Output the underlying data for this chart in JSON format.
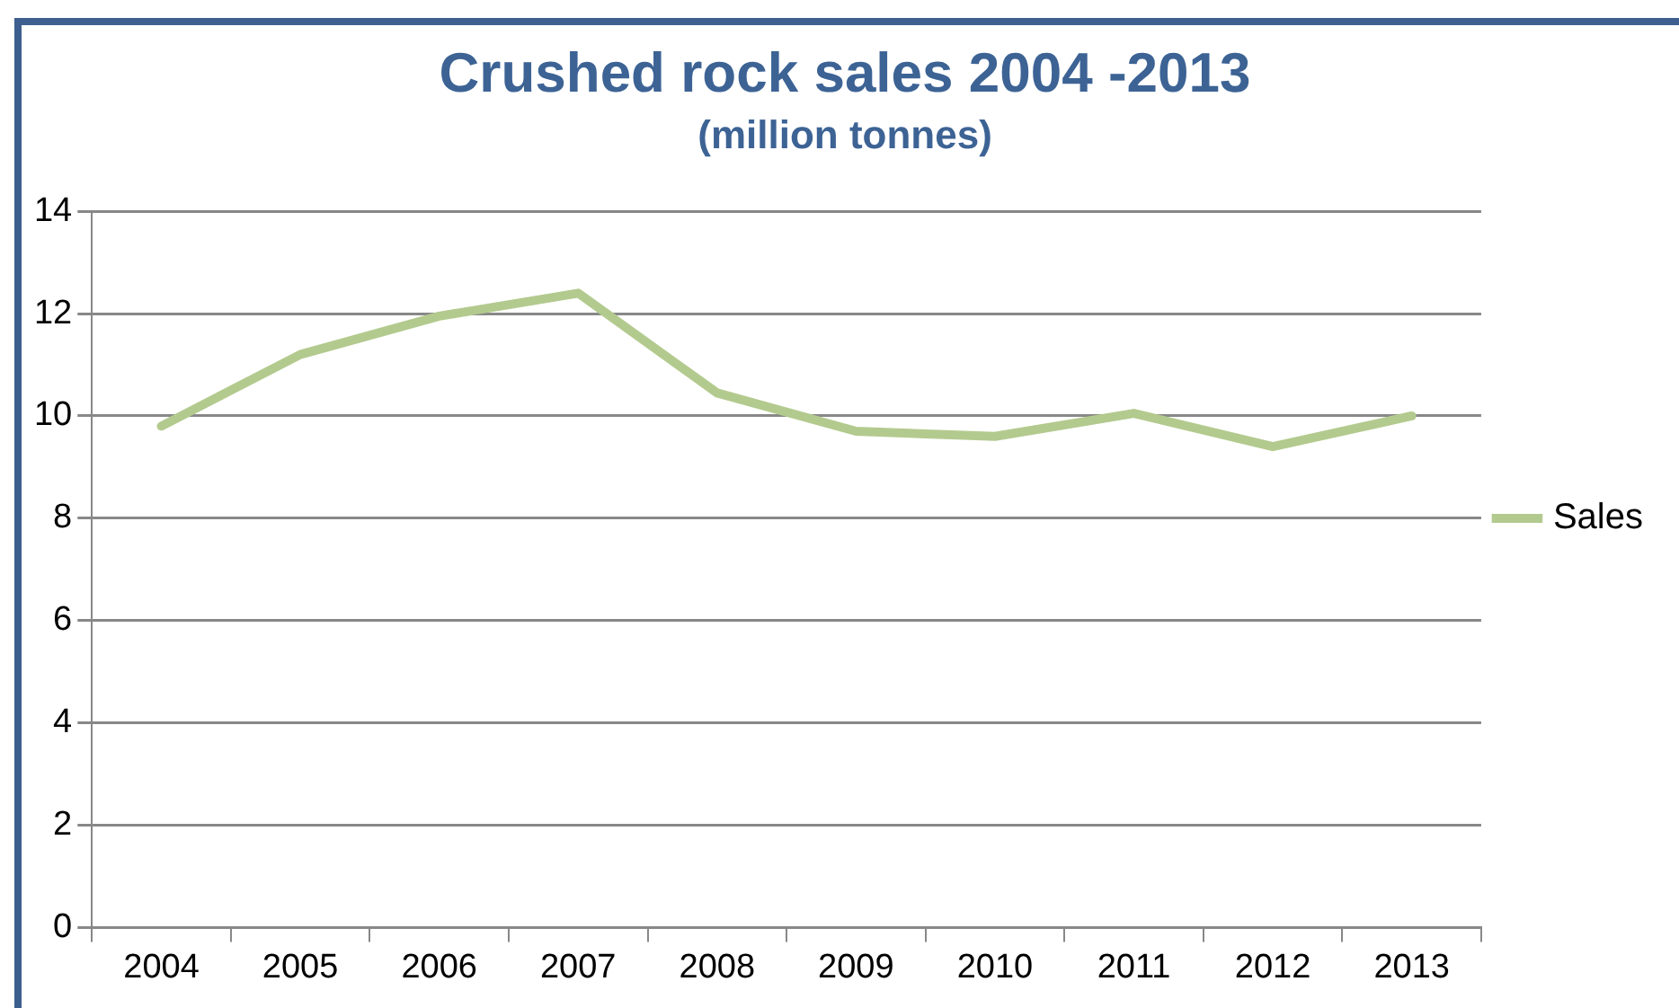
{
  "chart_data": {
    "type": "line",
    "title": "Crushed rock sales 2004 -2013",
    "subtitle": "(million tonnes)",
    "categories": [
      "2004",
      "2005",
      "2006",
      "2007",
      "2008",
      "2009",
      "2010",
      "2011",
      "2012",
      "2013"
    ],
    "series": [
      {
        "name": "Sales",
        "color": "#b3ca8e",
        "values": [
          9.8,
          11.2,
          11.95,
          12.4,
          10.45,
          9.7,
          9.6,
          10.05,
          9.4,
          10.0
        ]
      }
    ],
    "ylim": [
      0,
      14
    ],
    "yticks": [
      0,
      2,
      4,
      6,
      8,
      10,
      12,
      14
    ],
    "grid": "y",
    "legend": "right",
    "marker": "none",
    "line_style": "solid"
  }
}
